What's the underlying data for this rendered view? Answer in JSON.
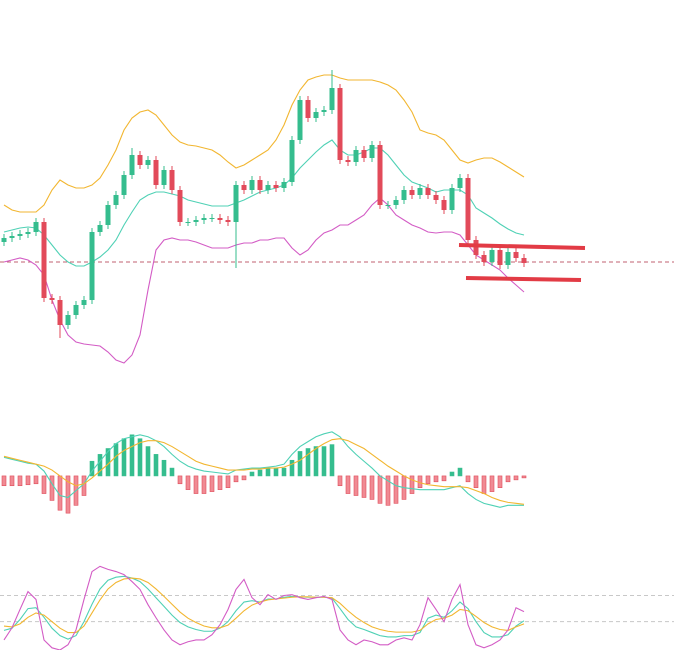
{
  "chart_data": [
    {
      "type": "candlestick",
      "up_color": "#35bd8e",
      "down_color": "#e24a5a",
      "ylim": [
        0,
        400
      ],
      "open": [
        158,
        162,
        164,
        166,
        168,
        178,
        102,
        100,
        75,
        85,
        95,
        100,
        168,
        175,
        195,
        205,
        225,
        245,
        235,
        240,
        215,
        230,
        210,
        178,
        178,
        180,
        182,
        182,
        180,
        178,
        215,
        210,
        220,
        210,
        215,
        212,
        218,
        260,
        300,
        282,
        288,
        290,
        312,
        240,
        238,
        250,
        242,
        255,
        195,
        195,
        200,
        210,
        205,
        212,
        205,
        200,
        190,
        212,
        222,
        160,
        145,
        138,
        150,
        135,
        148,
        142
      ],
      "high": [
        166,
        168,
        170,
        172,
        182,
        182,
        106,
        104,
        89,
        99,
        104,
        172,
        179,
        199,
        209,
        229,
        252,
        249,
        244,
        244,
        234,
        234,
        214,
        182,
        184,
        186,
        186,
        186,
        184,
        219,
        219,
        224,
        224,
        219,
        219,
        222,
        264,
        304,
        304,
        292,
        294,
        330,
        316,
        244,
        254,
        254,
        259,
        259,
        199,
        204,
        214,
        214,
        216,
        216,
        209,
        204,
        216,
        226,
        226,
        164,
        149,
        154,
        154,
        152,
        152,
        146
      ],
      "low": [
        154,
        158,
        160,
        162,
        164,
        98,
        96,
        62,
        71,
        81,
        91,
        96,
        164,
        171,
        191,
        201,
        221,
        231,
        231,
        211,
        211,
        206,
        174,
        174,
        174,
        176,
        178,
        176,
        174,
        132,
        206,
        206,
        206,
        206,
        208,
        208,
        214,
        256,
        278,
        278,
        284,
        286,
        236,
        234,
        234,
        238,
        238,
        191,
        191,
        191,
        196,
        201,
        201,
        201,
        196,
        186,
        186,
        208,
        156,
        141,
        134,
        134,
        131,
        131,
        138,
        133
      ],
      "close": [
        162,
        164,
        166,
        168,
        178,
        102,
        100,
        75,
        85,
        95,
        100,
        168,
        175,
        195,
        205,
        225,
        245,
        235,
        240,
        215,
        230,
        210,
        178,
        178,
        180,
        182,
        182,
        180,
        178,
        215,
        210,
        220,
        210,
        215,
        212,
        218,
        260,
        300,
        282,
        288,
        290,
        312,
        240,
        238,
        250,
        242,
        255,
        195,
        195,
        200,
        210,
        205,
        212,
        205,
        200,
        190,
        212,
        222,
        160,
        145,
        138,
        150,
        135,
        148,
        142,
        137
      ],
      "series": [
        {
          "color": "#f2b630",
          "values": [
            195,
            190,
            188,
            188,
            188,
            195,
            210,
            220,
            215,
            212,
            212,
            215,
            222,
            235,
            250,
            270,
            282,
            288,
            290,
            285,
            275,
            265,
            258,
            255,
            254,
            252,
            250,
            245,
            238,
            232,
            235,
            240,
            245,
            250,
            260,
            275,
            295,
            310,
            320,
            323,
            325,
            325,
            322,
            320,
            320,
            320,
            320,
            318,
            315,
            310,
            300,
            288,
            270,
            267,
            265,
            260,
            250,
            240,
            237,
            240,
            242,
            242,
            238,
            233,
            228,
            223
          ]
        },
        {
          "color": "#4fd1b5",
          "values": [
            168,
            170,
            172,
            173,
            172,
            165,
            155,
            145,
            138,
            134,
            134,
            138,
            143,
            150,
            160,
            175,
            188,
            200,
            205,
            208,
            208,
            206,
            204,
            200,
            198,
            196,
            194,
            194,
            194,
            197,
            200,
            204,
            208,
            210,
            212,
            215,
            222,
            232,
            240,
            248,
            255,
            260,
            250,
            245,
            245,
            248,
            252,
            252,
            245,
            235,
            225,
            218,
            215,
            212,
            208,
            210,
            210,
            210,
            205,
            192,
            187,
            182,
            176,
            171,
            167,
            165
          ]
        },
        {
          "color": "#d35cc5",
          "values": [
            138,
            140,
            142,
            140,
            135,
            125,
            100,
            80,
            65,
            58,
            56,
            55,
            54,
            48,
            40,
            37,
            45,
            65,
            110,
            150,
            160,
            162,
            160,
            160,
            158,
            155,
            152,
            152,
            152,
            155,
            157,
            157,
            160,
            160,
            162,
            162,
            152,
            145,
            150,
            160,
            167,
            170,
            175,
            175,
            180,
            185,
            195,
            202,
            195,
            185,
            180,
            175,
            172,
            168,
            167,
            168,
            168,
            165,
            155,
            145,
            140,
            135,
            130,
            122,
            115,
            108
          ]
        }
      ]
    },
    {
      "type": "macd",
      "up_color": "#35bd8e",
      "down_color": "#f08a93",
      "ylim": [
        -45,
        52
      ],
      "values": [
        -10,
        -10,
        -10,
        -9,
        -8,
        -18,
        -25,
        -35,
        -38,
        -30,
        -20,
        15,
        22,
        28,
        33,
        38,
        42,
        38,
        30,
        22,
        16,
        8,
        -8,
        -14,
        -18,
        -18,
        -16,
        -14,
        -12,
        -6,
        -4,
        4,
        6,
        8,
        8,
        8,
        16,
        25,
        28,
        30,
        30,
        32,
        -10,
        -18,
        -20,
        -22,
        -24,
        -28,
        -30,
        -28,
        -24,
        -18,
        -12,
        -8,
        -6,
        -5,
        4,
        8,
        -6,
        -12,
        -18,
        -16,
        -12,
        -6,
        -4,
        -2
      ],
      "series": [
        {
          "color": "#4fd1b5",
          "values": [
            19,
            17,
            15,
            13,
            12,
            5,
            -8,
            -20,
            -22,
            -15,
            -8,
            5,
            15,
            25,
            33,
            38,
            40,
            42,
            40,
            36,
            30,
            22,
            15,
            10,
            7,
            5,
            4,
            3,
            2,
            6,
            7,
            8,
            8,
            9,
            10,
            12,
            22,
            30,
            35,
            40,
            43,
            45,
            40,
            30,
            22,
            15,
            8,
            0,
            -5,
            -10,
            -12,
            -13,
            -14,
            -14,
            -14,
            -14,
            -12,
            -10,
            -18,
            -24,
            -28,
            -30,
            -32,
            -30,
            -30,
            -30
          ]
        },
        {
          "color": "#f2b630",
          "values": [
            20,
            18,
            16,
            14,
            12,
            10,
            6,
            0,
            -6,
            -10,
            -8,
            -2,
            5,
            12,
            20,
            26,
            30,
            34,
            36,
            36,
            34,
            30,
            25,
            20,
            15,
            12,
            10,
            8,
            6,
            6,
            6,
            7,
            7,
            8,
            8,
            9,
            12,
            16,
            22,
            28,
            33,
            37,
            38,
            36,
            32,
            28,
            22,
            16,
            10,
            5,
            0,
            -4,
            -7,
            -9,
            -10,
            -11,
            -11,
            -11,
            -12,
            -15,
            -18,
            -22,
            -25,
            -27,
            -28,
            -29
          ]
        }
      ]
    },
    {
      "type": "line",
      "ylim": [
        -45,
        150
      ],
      "levels": [
        80,
        20
      ],
      "series": [
        {
          "color": "#4fd1b5",
          "values": [
            0,
            5,
            25,
            50,
            52,
            30,
            5,
            -12,
            -20,
            -12,
            20,
            60,
            95,
            115,
            122,
            124,
            120,
            112,
            95,
            75,
            55,
            35,
            18,
            8,
            2,
            -2,
            -2,
            5,
            20,
            45,
            65,
            68,
            65,
            72,
            72,
            76,
            78,
            77,
            76,
            76,
            76,
            74,
            50,
            25,
            8,
            2,
            -5,
            -12,
            -15,
            -15,
            -12,
            -12,
            -5,
            28,
            35,
            30,
            45,
            65,
            50,
            20,
            -5,
            -15,
            -15,
            -10,
            10,
            22
          ]
        },
        {
          "color": "#f2b630",
          "values": [
            10,
            8,
            15,
            30,
            40,
            35,
            20,
            5,
            -5,
            -5,
            10,
            40,
            70,
            95,
            110,
            118,
            120,
            118,
            110,
            95,
            78,
            60,
            42,
            28,
            18,
            10,
            6,
            6,
            12,
            28,
            45,
            58,
            65,
            70,
            72,
            74,
            76,
            77,
            77,
            76,
            76,
            75,
            62,
            45,
            30,
            18,
            8,
            2,
            -2,
            -4,
            -4,
            -4,
            0,
            15,
            25,
            28,
            35,
            48,
            45,
            32,
            18,
            8,
            2,
            0,
            8,
            15
          ]
        },
        {
          "color": "#d35cc5",
          "values": [
            -22,
            6,
            48,
            89,
            71,
            -22,
            -40,
            -45,
            -33,
            1,
            71,
            135,
            147,
            140,
            135,
            128,
            112,
            94,
            59,
            29,
            1,
            -22,
            -33,
            -26,
            -22,
            -22,
            -10,
            13,
            48,
            94,
            117,
            75,
            59,
            82,
            71,
            80,
            82,
            75,
            71,
            75,
            78,
            71,
            1,
            -22,
            -33,
            -22,
            -26,
            -33,
            -33,
            -22,
            -17,
            -22,
            13,
            75,
            48,
            20,
            71,
            105,
            13,
            -33,
            -40,
            -33,
            -22,
            1,
            52,
            43
          ]
        }
      ]
    }
  ]
}
